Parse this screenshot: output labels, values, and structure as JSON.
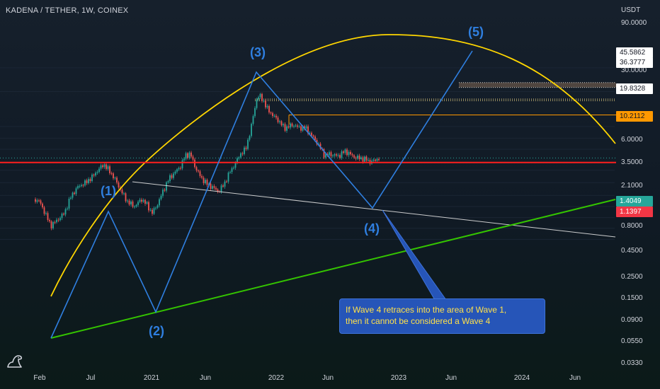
{
  "header": {
    "symbol": "KADENA / TETHER, 1W, COINEX",
    "currency": "USDT"
  },
  "colors": {
    "background": "#131722",
    "candle_up": "#26a69a",
    "candle_down": "#ef5350",
    "arc": "#ffd600",
    "wave_lines": "#2f7fe0",
    "support_line": "#34c400",
    "resistance_line": "#ff1f1f",
    "target_line": "#ff9800",
    "trend_line": "#e0e0e0",
    "note_bg": "#2655b8",
    "note_text": "#ffe14a"
  },
  "icons": {
    "logo": "tradingview-dino-icon"
  },
  "chart_data": {
    "type": "candlestick",
    "scale": "log",
    "y_unit": "USDT",
    "ylim": [
      0.028,
      110
    ],
    "y_ticks": [
      "90.0000",
      "30.0000",
      "6.0000",
      "3.5000",
      "2.1000",
      "0.8000",
      "0.4500",
      "0.2500",
      "0.1500",
      "0.0900",
      "0.0550",
      "0.0330"
    ],
    "x_ticks": [
      "Feb",
      "Jul",
      "2021",
      "Jun",
      "2022",
      "Jun",
      "2023",
      "Jun",
      "2024",
      "Jun"
    ],
    "price_markers": [
      {
        "label": "45.5862",
        "value": 45.5862,
        "style": "white"
      },
      {
        "label": "36.3777",
        "value": 36.3777,
        "style": "white"
      },
      {
        "label": "19.8328",
        "value": 19.8328,
        "style": "white"
      },
      {
        "label": "10.2112",
        "value": 10.2112,
        "style": "orange"
      },
      {
        "label": "1.4049",
        "value": 1.4049,
        "style": "green"
      },
      {
        "label": "1.1397",
        "value": 1.1397,
        "style": "red"
      }
    ],
    "waves": [
      {
        "label": "(1)",
        "value": 1.1
      },
      {
        "label": "(2)",
        "value": 0.11
      },
      {
        "label": "(3)",
        "value": 27.0
      },
      {
        "label": "(4)",
        "value": 1.14
      },
      {
        "label": "(5)",
        "value": 48.0
      }
    ],
    "annotation": "If Wave 4 retraces into the area of Wave 1,\nthen it cannot be considered a Wave 4"
  }
}
